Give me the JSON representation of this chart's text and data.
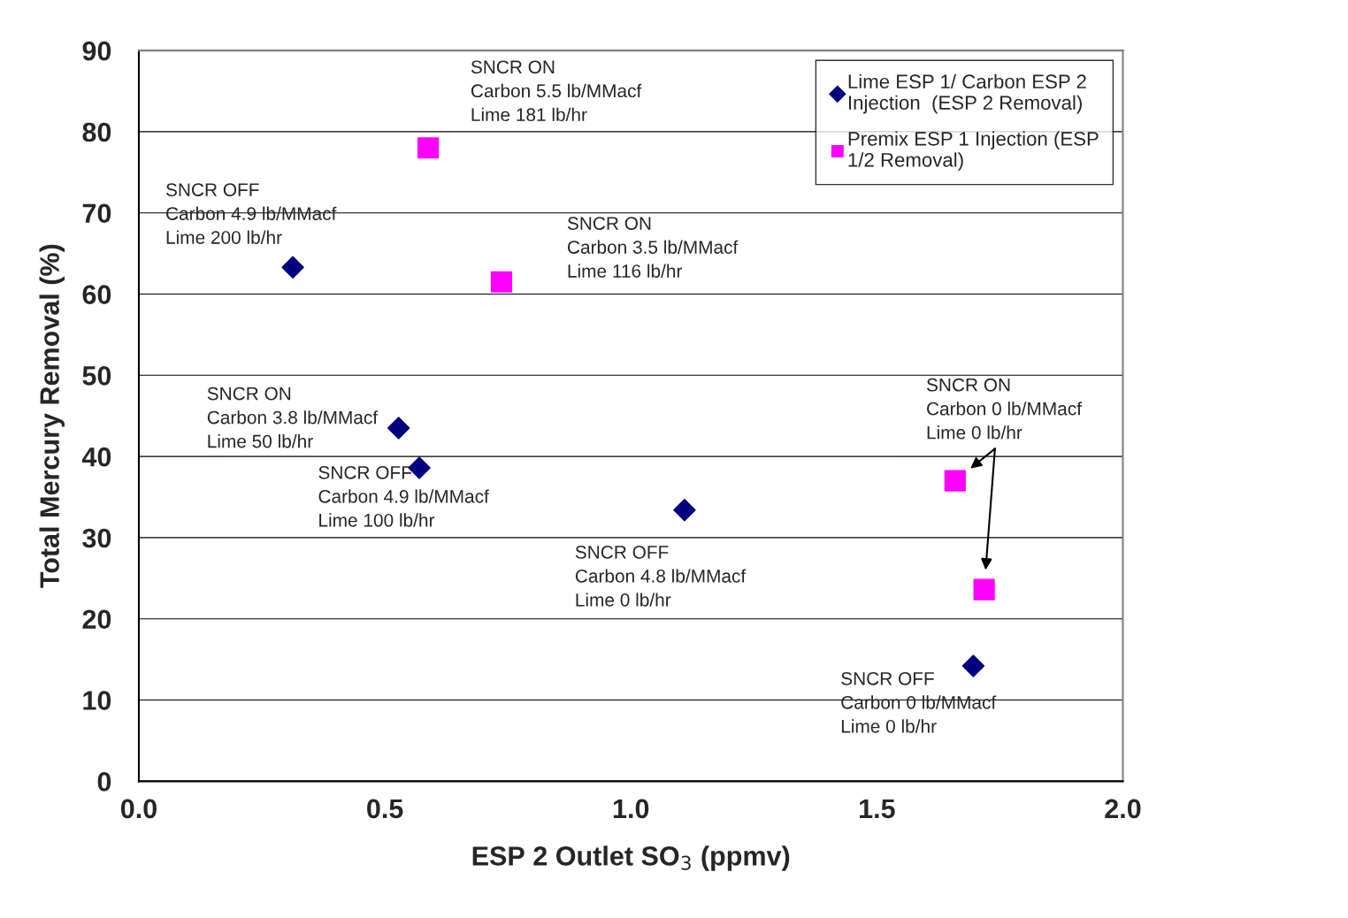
{
  "chart_data": {
    "type": "scatter",
    "xlabel": "ESP 2 Outlet SO$_{3}$ (ppmv)",
    "ylabel": "Total Mercury Removal (%)",
    "xlim": [
      0,
      2
    ],
    "xticks": [
      {
        "value": 0,
        "label": "0.0"
      },
      {
        "value": 0.5,
        "label": "0.5"
      },
      {
        "value": 1,
        "label": "1.0"
      },
      {
        "value": 1.5,
        "label": "1.5"
      },
      {
        "value": 2,
        "label": "2.0"
      }
    ],
    "ylim": [
      0,
      90
    ],
    "yticks": [
      0,
      10,
      20,
      30,
      40,
      50,
      60,
      70,
      80,
      90
    ],
    "grid": "y",
    "legend": "top right",
    "series": [
      {
        "name": "Lime ESP 1/ Carbon ESP 2\nInjection  (ESP 2 Removal)",
        "color": "#000080",
        "marker": "diamond",
        "x": [
          0.313,
          0.528,
          0.57,
          1.109,
          1.696
        ],
        "values": [
          63.3,
          43.5,
          38.6,
          33.4,
          14.2
        ]
      },
      {
        "name": "Premix ESP 1 Injection (ESP\n1/2 Removal)",
        "color": "#ff00ff",
        "marker": "square",
        "x": [
          0.588,
          0.737,
          1.659,
          1.718
        ],
        "values": [
          78.0,
          61.5,
          37.0,
          23.6
        ]
      }
    ],
    "annotations": [
      "SNCR ON\nCarbon 5.5 lb/MMacf\nLime 181 lb/hr",
      "SNCR OFF\nCarbon 4.9 lb/MMacf\nLime 200 lb/hr",
      "SNCR ON\nCarbon 3.5 lb/MMacf\nLime 116 lb/hr",
      "SNCR ON\nCarbon 3.8 lb/MMacf\nLime 50 lb/hr",
      "SNCR OFF\nCarbon 4.9 lb/MMacf\nLime 100 lb/hr",
      "SNCR OFF\nCarbon 4.8 lb/MMacf\nLime 0 lb/hr",
      "SNCR ON\nCarbon 0 lb/MMacf\nLime 0 lb/hr",
      "SNCR OFF\nCarbon 0 lb/MMacf\nLime 0 lb/hr"
    ]
  }
}
